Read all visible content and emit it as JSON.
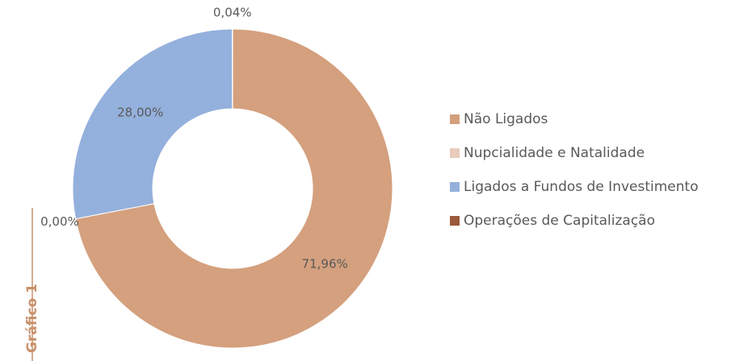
{
  "chart_data": {
    "type": "donut",
    "side_label": "Gráfico 1",
    "categories": [
      "Não Ligados",
      "Nupcialidade e Natalidade",
      "Ligados a Fundos de Investimento",
      "Operações de Capitalização"
    ],
    "values": [
      71.96,
      0.0,
      28.0,
      0.04
    ],
    "value_labels": [
      "71,96%",
      "0,00%",
      "28,00%",
      "0,04%"
    ],
    "colors": [
      "#d4a07e",
      "#e8cbbd",
      "#94b0dc",
      "#9c5a3c"
    ],
    "legend": "right"
  }
}
